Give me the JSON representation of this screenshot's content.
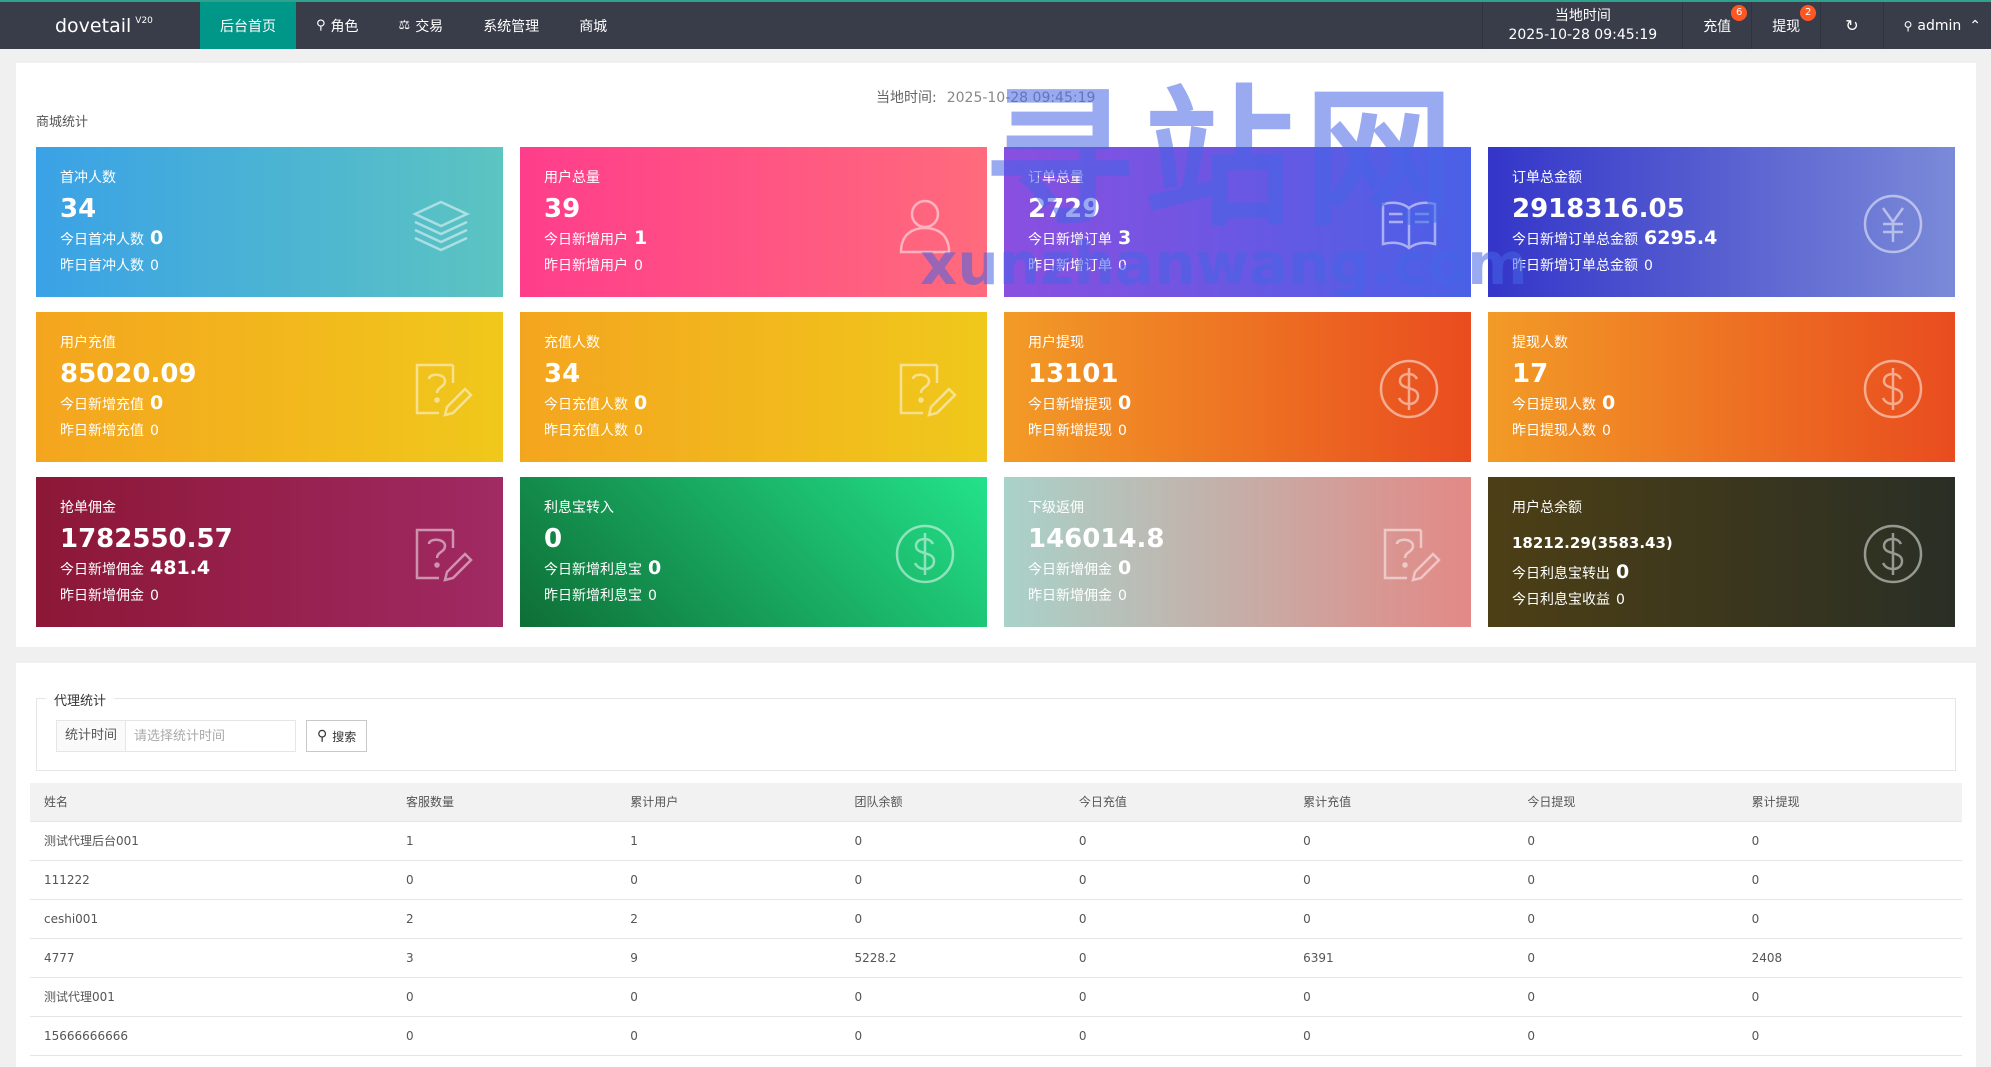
{
  "header": {
    "logo": "dovetail",
    "version": "V20",
    "nav": [
      {
        "label": "后台首页",
        "icon": "",
        "active": true
      },
      {
        "label": "角色",
        "icon": "user-icon",
        "active": false
      },
      {
        "label": "交易",
        "icon": "scale-icon",
        "active": false
      },
      {
        "label": "系统管理",
        "icon": "",
        "active": false
      },
      {
        "label": "商城",
        "icon": "",
        "active": false
      }
    ],
    "time_label": "当地时间",
    "time_value": "2025-10-28 09:45:19",
    "recharge_label": "充值",
    "recharge_badge": "6",
    "withdraw_label": "提现",
    "withdraw_badge": "2",
    "user": "admin"
  },
  "stats": {
    "now_label": "当地时间:",
    "now_value": "2025-10-28 09:45:19",
    "section_title": "商城统计",
    "cards": [
      {
        "label": "首冲人数",
        "value": "34",
        "today_label": "今日首冲人数",
        "today": "0",
        "yest_label": "昨日首冲人数",
        "yest": "0",
        "icon": "layers-icon",
        "color": "cyan"
      },
      {
        "label": "用户总量",
        "value": "39",
        "today_label": "今日新增用户",
        "today": "1",
        "yest_label": "昨日新增用户",
        "yest": "0",
        "icon": "user-icon",
        "color": "pink"
      },
      {
        "label": "订单总量",
        "value": "2729",
        "today_label": "今日新增订单",
        "today": "3",
        "yest_label": "昨日新增订单",
        "yest": "0",
        "icon": "book-icon",
        "color": "purple"
      },
      {
        "label": "订单总金额",
        "value": "2918316.05",
        "today_label": "今日新增订单总金额",
        "today": "6295.4",
        "yest_label": "昨日新增订单总金额",
        "yest": "0",
        "icon": "yen-icon",
        "color": "indigo"
      },
      {
        "label": "用户充值",
        "value": "85020.09",
        "today_label": "今日新增充值",
        "today": "0",
        "yest_label": "昨日新增充值",
        "yest": "0",
        "icon": "edit-question-icon",
        "color": "yellow"
      },
      {
        "label": "充值人数",
        "value": "34",
        "today_label": "今日充值人数",
        "today": "0",
        "yest_label": "昨日充值人数",
        "yest": "0",
        "icon": "edit-question-icon",
        "color": "yellow"
      },
      {
        "label": "用户提现",
        "value": "13101",
        "today_label": "今日新增提现",
        "today": "0",
        "yest_label": "昨日新增提现",
        "yest": "0",
        "icon": "dollar-icon",
        "color": "orange"
      },
      {
        "label": "提现人数",
        "value": "17",
        "today_label": "今日提现人数",
        "today": "0",
        "yest_label": "昨日提现人数",
        "yest": "0",
        "icon": "dollar-icon",
        "color": "orange"
      },
      {
        "label": "抢单佣金",
        "value": "1782550.57",
        "today_label": "今日新增佣金",
        "today": "481.4",
        "yest_label": "昨日新增佣金",
        "yest": "0",
        "icon": "edit-question-icon",
        "color": "wine"
      },
      {
        "label": "利息宝转入",
        "value": "0",
        "today_label": "今日新增利息宝",
        "today": "0",
        "yest_label": "昨日新增利息宝",
        "yest": "0",
        "icon": "dollar-icon",
        "color": "green"
      },
      {
        "label": "下级返佣",
        "value": "146014.8",
        "today_label": "今日新增佣金",
        "today": "0",
        "yest_label": "昨日新增佣金",
        "yest": "0",
        "icon": "edit-question-icon",
        "color": "blush"
      },
      {
        "label": "用户总余额",
        "value": "18212.29(3583.43)",
        "today_label": "今日利息宝转出",
        "today": "0",
        "yest_label": "今日利息宝收益",
        "yest": "0",
        "icon": "dollar-icon",
        "color": "olive",
        "small": true
      }
    ]
  },
  "agent": {
    "legend": "代理统计",
    "search_label": "统计时间",
    "search_placeholder": "请选择统计时间",
    "search_button": "搜索",
    "columns": [
      "姓名",
      "客服数量",
      "累计用户",
      "团队余额",
      "今日充值",
      "累计充值",
      "今日提现",
      "累计提现"
    ],
    "rows": [
      [
        "测试代理后台001",
        "1",
        "1",
        "0",
        "0",
        "0",
        "0",
        "0"
      ],
      [
        "111222",
        "0",
        "0",
        "0",
        "0",
        "0",
        "0",
        "0"
      ],
      [
        "ceshi001",
        "2",
        "2",
        "0",
        "0",
        "0",
        "0",
        "0"
      ],
      [
        "4777",
        "3",
        "9",
        "5228.2",
        "0",
        "6391",
        "0",
        "2408"
      ],
      [
        "测试代理001",
        "0",
        "0",
        "0",
        "0",
        "0",
        "0",
        "0"
      ],
      [
        "15666666666",
        "0",
        "0",
        "0",
        "0",
        "0",
        "0",
        "0"
      ]
    ]
  },
  "watermark": {
    "text": "寻站网",
    "site": "xunzhanwang.com"
  }
}
